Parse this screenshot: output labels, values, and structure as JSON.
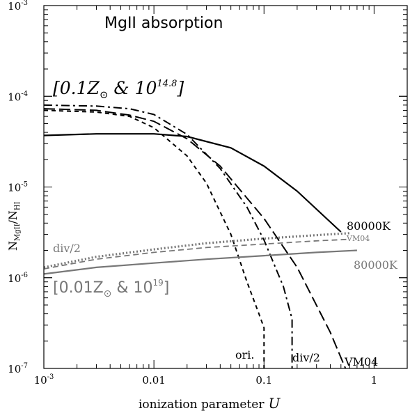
{
  "chart_data": {
    "type": "line",
    "title": "MgII absorption",
    "xlabel_text": "ionization parameter",
    "xlabel_symbol": "U",
    "ylabel": {
      "base": "N",
      "num_sub": "MgII",
      "den": "N",
      "den_sub": "HI"
    },
    "x_scale": "log",
    "y_scale": "log",
    "xlim": [
      0.001,
      2
    ],
    "ylim": [
      1e-07,
      0.001
    ],
    "x_ticks": [
      {
        "value": 0.001,
        "base": "10",
        "exp": "-3"
      },
      {
        "value": 0.01,
        "label": "0.01"
      },
      {
        "value": 0.1,
        "label": "0.1"
      },
      {
        "value": 1,
        "label": "1"
      }
    ],
    "y_ticks": [
      {
        "value": 1e-07,
        "base": "10",
        "exp": "-7"
      },
      {
        "value": 1e-06,
        "base": "10",
        "exp": "-6"
      },
      {
        "value": 1e-05,
        "base": "10",
        "exp": "-5"
      },
      {
        "value": 0.0001,
        "base": "10",
        "exp": "-4"
      },
      {
        "value": 0.001,
        "base": "10",
        "exp": "-3"
      }
    ],
    "groups": [
      {
        "label_pre": "[0.1Z",
        "label_mid": " & 10",
        "label_exp": "14.8",
        "label_post": "]",
        "color": "#000000",
        "series": [
          {
            "name": "80000K",
            "dash": "solid",
            "x": [
              0.001,
              0.003,
              0.01,
              0.02,
              0.05,
              0.1,
              0.2,
              0.5
            ],
            "y": [
              3.7e-05,
              3.85e-05,
              3.85e-05,
              3.6e-05,
              2.7e-05,
              1.7e-05,
              9e-06,
              3.2e-06
            ]
          },
          {
            "name": "ori.",
            "dash": "short",
            "x": [
              0.001,
              0.003,
              0.006,
              0.01,
              0.02,
              0.03,
              0.05,
              0.07,
              0.09,
              0.1,
              0.1
            ],
            "y": [
              7e-05,
              6.7e-05,
              6e-05,
              4.5e-05,
              2.2e-05,
              1.1e-05,
              3e-06,
              9e-07,
              4e-07,
              2.8e-07,
              1e-07
            ]
          },
          {
            "name": "div/2",
            "dash": "dashdot",
            "x": [
              0.001,
              0.003,
              0.006,
              0.01,
              0.02,
              0.04,
              0.07,
              0.1,
              0.15,
              0.18,
              0.18
            ],
            "y": [
              8e-05,
              7.8e-05,
              7.3e-05,
              6.3e-05,
              3.8e-05,
              1.6e-05,
              6e-06,
              2.6e-06,
              8e-07,
              3.5e-07,
              1e-07
            ]
          },
          {
            "name": "VM04",
            "dash": "long",
            "x": [
              0.001,
              0.003,
              0.006,
              0.01,
              0.02,
              0.04,
              0.1,
              0.2,
              0.4,
              0.55
            ],
            "y": [
              7.3e-05,
              7e-05,
              6.2e-05,
              5.3e-05,
              3.4e-05,
              1.7e-05,
              4.5e-06,
              1.3e-06,
              2.5e-07,
              1e-07
            ]
          }
        ]
      },
      {
        "label_pre": "[0.01Z",
        "label_mid": " & 10",
        "label_exp": "19",
        "label_post": "]",
        "color": "#777777",
        "series": [
          {
            "name": "80000K",
            "dash": "solid",
            "x": [
              0.001,
              0.003,
              0.01,
              0.03,
              0.1,
              0.3,
              0.7
            ],
            "y": [
              1.1e-06,
              1.3e-06,
              1.45e-06,
              1.6e-06,
              1.75e-06,
              1.9e-06,
              2e-06
            ]
          },
          {
            "name": "div/2",
            "dash": "dotted",
            "x": [
              0.001,
              0.003,
              0.01,
              0.03,
              0.1,
              0.3,
              0.6
            ],
            "y": [
              1.3e-06,
              1.7e-06,
              2.05e-06,
              2.4e-06,
              2.7e-06,
              2.95e-06,
              3.1e-06
            ]
          },
          {
            "name": "VM04",
            "dash": "medium",
            "x": [
              0.001,
              0.003,
              0.01,
              0.03,
              0.1,
              0.3,
              0.6
            ],
            "y": [
              1.25e-06,
              1.6e-06,
              1.9e-06,
              2.15e-06,
              2.35e-06,
              2.55e-06,
              2.65e-06
            ]
          }
        ]
      }
    ]
  }
}
